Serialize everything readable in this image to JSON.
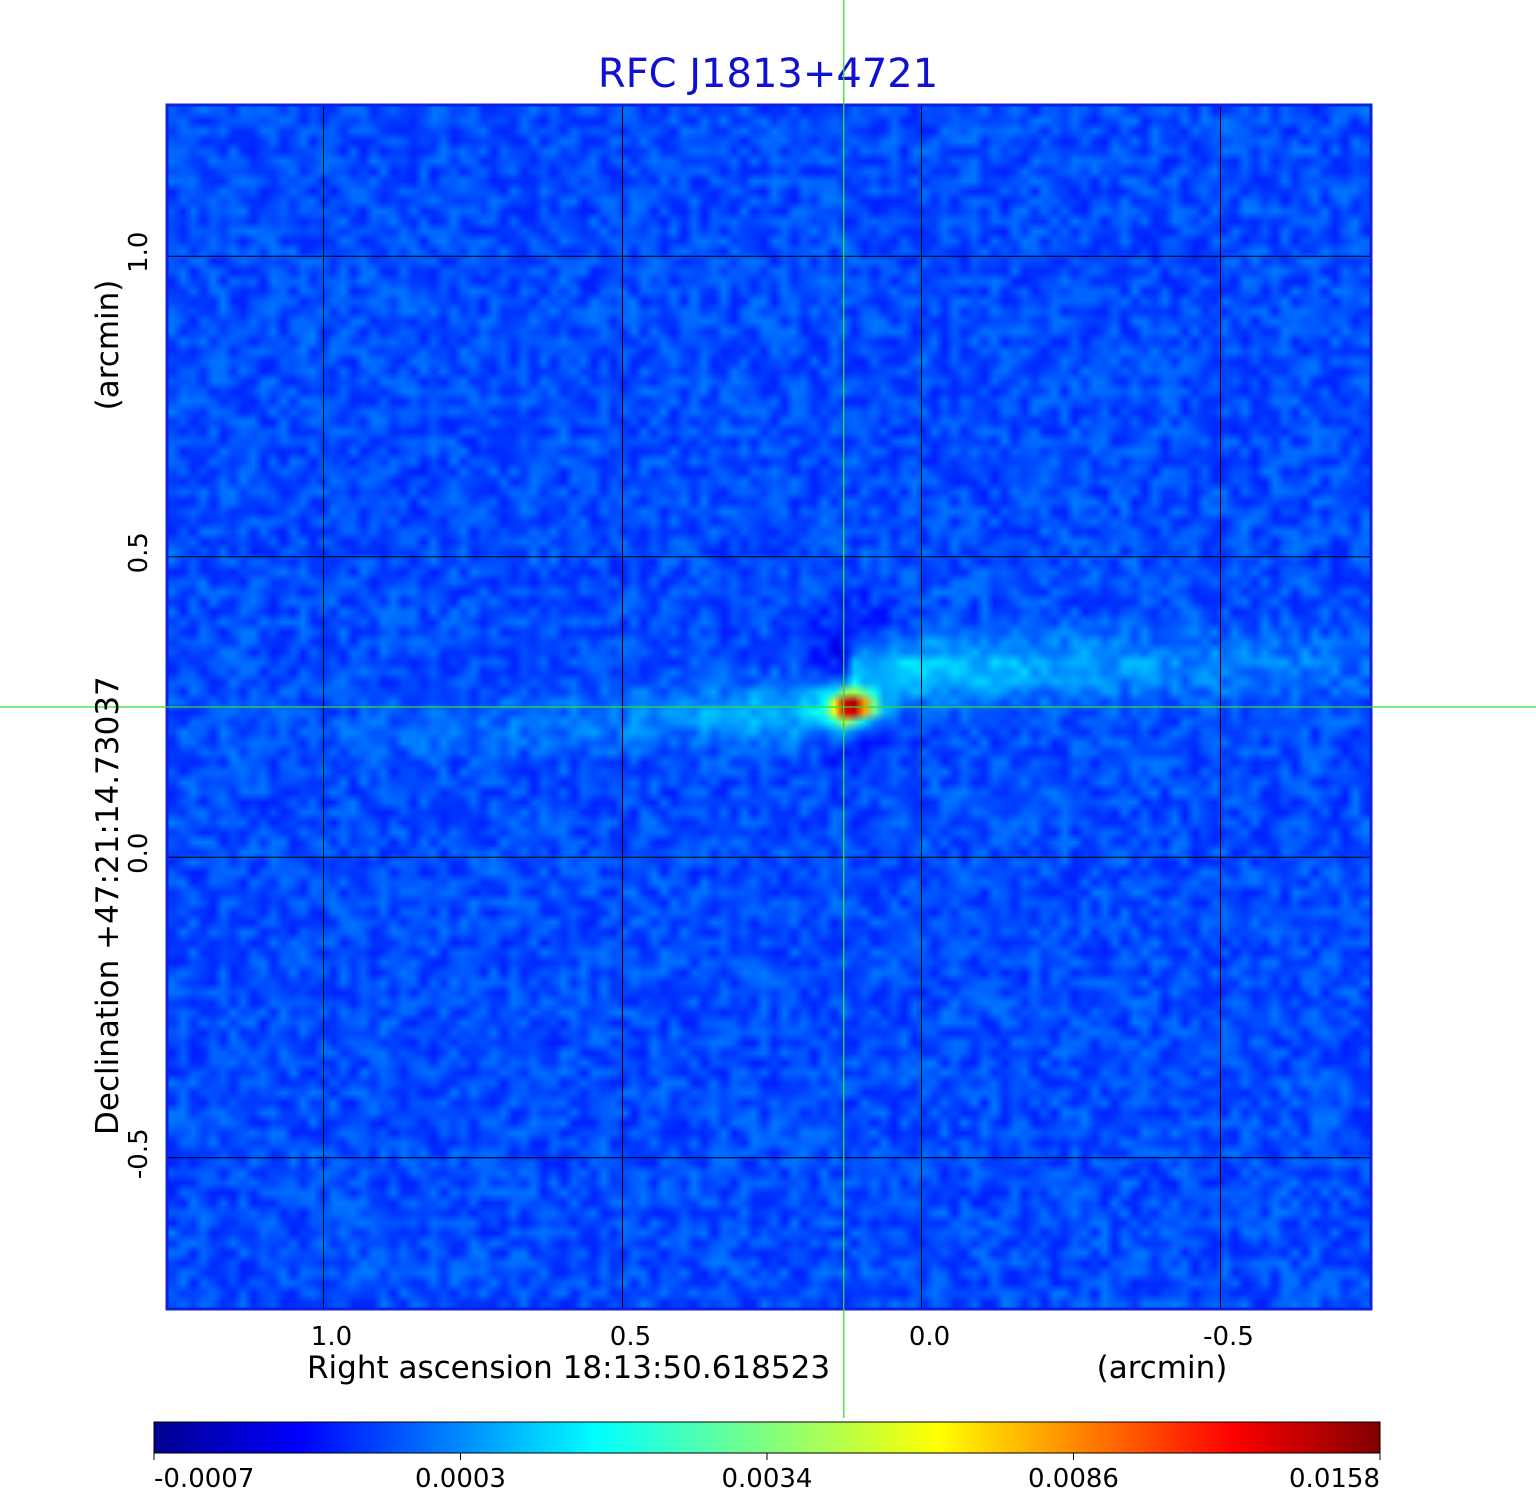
{
  "chart_data": {
    "type": "heatmap",
    "title": "RFC J1813+4721",
    "xlabel": "Right ascension  18:13:50.618523",
    "xunit": "(arcmin)",
    "ylabel": "Declination  +47:21:14.73037",
    "yunit": "(arcmin)",
    "xlim": [
      1.26,
      -0.75
    ],
    "ylim": [
      -0.75,
      1.25
    ],
    "x_ticks": [
      {
        "value": 1.0,
        "label": "1.0"
      },
      {
        "value": 0.5,
        "label": "0.5"
      },
      {
        "value": 0.0,
        "label": "0.0"
      },
      {
        "value": -0.5,
        "label": "-0.5"
      }
    ],
    "y_ticks": [
      {
        "value": 1.0,
        "label": "1.0"
      },
      {
        "value": 0.5,
        "label": "0.5"
      },
      {
        "value": 0.0,
        "label": "0.0"
      },
      {
        "value": -0.5,
        "label": "-0.5"
      }
    ],
    "grid": true,
    "crosshair": {
      "x": 0.13,
      "y": 0.25
    },
    "peak": {
      "x": 0.115,
      "y": 0.25,
      "value": 0.0158
    },
    "colormap": "jet",
    "colorbar": {
      "range": [
        -0.0007,
        0.0158
      ],
      "tick_labels": [
        "-0.0007",
        "0.0003",
        "0.0034",
        "0.0086",
        "0.0158"
      ]
    },
    "colors": {
      "title": "#1010d0",
      "frame": "#1020e0",
      "crosshair": "#33dd33",
      "grid": "#000000"
    }
  }
}
